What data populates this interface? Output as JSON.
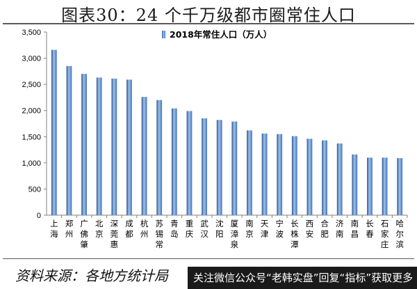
{
  "figure_title": "图表30：24 个千万级都市圈常住人口",
  "source_text": "资料来源：各地方统计局",
  "watermark_text": "关注微信公众号“老韩实盘”回复“指标”获取更多",
  "colors": {
    "bar": "#4472C4",
    "bar_light": "#9DC3E6",
    "bar_dark": "#2E5596",
    "axis": "#808080"
  },
  "chart_data": {
    "type": "bar",
    "title": "",
    "xlabel": "",
    "ylabel": "",
    "ylim": [
      0,
      3500
    ],
    "yticks": [
      0,
      500,
      1000,
      1500,
      2000,
      2500,
      3000,
      3500
    ],
    "ytick_labels": [
      "0",
      "500",
      "1,000",
      "1,500",
      "2,000",
      "2,500",
      "3,000",
      "3,500"
    ],
    "grid": false,
    "legend_position": "top",
    "categories": [
      "上海",
      "郑州",
      "广佛肇",
      "北京",
      "深莞惠",
      "成都",
      "杭州",
      "苏锡常",
      "青岛",
      "重庆",
      "武汉",
      "沈阳",
      "厦漳泉",
      "南京",
      "天津",
      "宁波",
      "长株潭",
      "西安",
      "合肥",
      "济南",
      "南昌",
      "长春",
      "石家庄",
      "哈尔滨"
    ],
    "series": [
      {
        "name": "2018年常住人口（万人）",
        "values": [
          3160,
          2850,
          2700,
          2630,
          2610,
          2590,
          2260,
          2200,
          2040,
          1990,
          1850,
          1820,
          1790,
          1620,
          1560,
          1550,
          1510,
          1460,
          1430,
          1370,
          1160,
          1100,
          1100,
          1090
        ]
      }
    ]
  }
}
